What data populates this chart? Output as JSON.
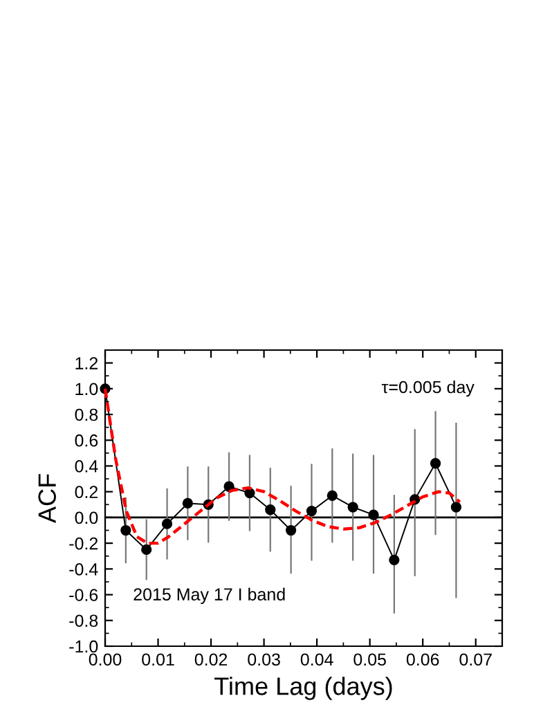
{
  "chart_data": {
    "type": "line",
    "xlabel": "Time Lag (days)",
    "ylabel": "ACF",
    "series": [
      {
        "color": "#000000",
        "marker": "circle",
        "line_style": "solid",
        "x": [
          0,
          0.0039,
          0.0078,
          0.0117,
          0.0156,
          0.0195,
          0.0234,
          0.0273,
          0.0312,
          0.0351,
          0.039,
          0.0429,
          0.0468,
          0.0507,
          0.0546,
          0.0585,
          0.0624,
          0.0663
        ],
        "values": [
          1.0,
          -0.1,
          -0.25,
          -0.05,
          0.11,
          0.1,
          0.24,
          0.19,
          0.06,
          -0.1,
          0.05,
          0.17,
          0.08,
          0.02,
          -0.33,
          0.14,
          0.42,
          0.08
        ],
        "errors": [
          null,
          [
            -0.35,
            0.15
          ],
          [
            -0.48,
            -0.02
          ],
          [
            -0.32,
            0.22
          ],
          [
            -0.17,
            0.39
          ],
          [
            -0.19,
            0.39
          ],
          [
            -0.02,
            0.5
          ],
          [
            -0.1,
            0.48
          ],
          [
            -0.26,
            0.38
          ],
          [
            -0.43,
            0.24
          ],
          [
            -0.33,
            0.41
          ],
          [
            -0.19,
            0.53
          ],
          [
            -0.33,
            0.49
          ],
          [
            -0.43,
            0.48
          ],
          [
            -0.74,
            0.17
          ],
          [
            -0.45,
            0.68
          ],
          [
            -0.13,
            0.82
          ],
          [
            -0.62,
            0.73
          ]
        ]
      },
      {
        "color": "#ff0000",
        "marker": "none",
        "line_style": "dashed",
        "x": [
          0,
          0.002,
          0.004,
          0.006,
          0.008,
          0.01,
          0.012,
          0.015,
          0.018,
          0.021,
          0.024,
          0.027,
          0.03,
          0.033,
          0.036,
          0.039,
          0.042,
          0.045,
          0.048,
          0.051,
          0.054,
          0.057,
          0.06,
          0.063,
          0.065,
          0.067
        ],
        "values": [
          1.0,
          0.45,
          0.05,
          -0.15,
          -0.2,
          -0.2,
          -0.15,
          -0.05,
          0.05,
          0.15,
          0.21,
          0.23,
          0.2,
          0.13,
          0.05,
          -0.02,
          -0.07,
          -0.09,
          -0.08,
          -0.04,
          0.02,
          0.09,
          0.16,
          0.2,
          0.19,
          0.12
        ]
      }
    ],
    "xlim": [
      0,
      0.075
    ],
    "xticks": [
      {
        "value": 0,
        "label": "0.00"
      },
      {
        "value": 0.01,
        "label": "0.01"
      },
      {
        "value": 0.02,
        "label": "0.02"
      },
      {
        "value": 0.03,
        "label": "0.03"
      },
      {
        "value": 0.04,
        "label": "0.04"
      },
      {
        "value": 0.05,
        "label": "0.05"
      },
      {
        "value": 0.06,
        "label": "0.06"
      },
      {
        "value": 0.07,
        "label": "0.07"
      }
    ],
    "ylim": [
      -1.0,
      1.3
    ],
    "yticks": [
      {
        "value": -1.0,
        "label": "-1.0"
      },
      {
        "value": -0.8,
        "label": "-0.8"
      },
      {
        "value": -0.6,
        "label": "-0.6"
      },
      {
        "value": -0.4,
        "label": "-0.4"
      },
      {
        "value": -0.2,
        "label": "-0.2"
      },
      {
        "value": 0,
        "label": "0.0"
      },
      {
        "value": 0.2,
        "label": "0.2"
      },
      {
        "value": 0.4,
        "label": "0.4"
      },
      {
        "value": 0.6,
        "label": "0.6"
      },
      {
        "value": 0.8,
        "label": "0.8"
      },
      {
        "value": 1.0,
        "label": "1.0"
      },
      {
        "value": 1.2,
        "label": "1.2"
      }
    ],
    "ref_lines": [
      {
        "axis": "y",
        "value": 0,
        "color": "#000000"
      }
    ],
    "annotations": [
      "τ=0.005 day",
      "2015 May 17 I band"
    ],
    "grid": false,
    "legend": false
  }
}
